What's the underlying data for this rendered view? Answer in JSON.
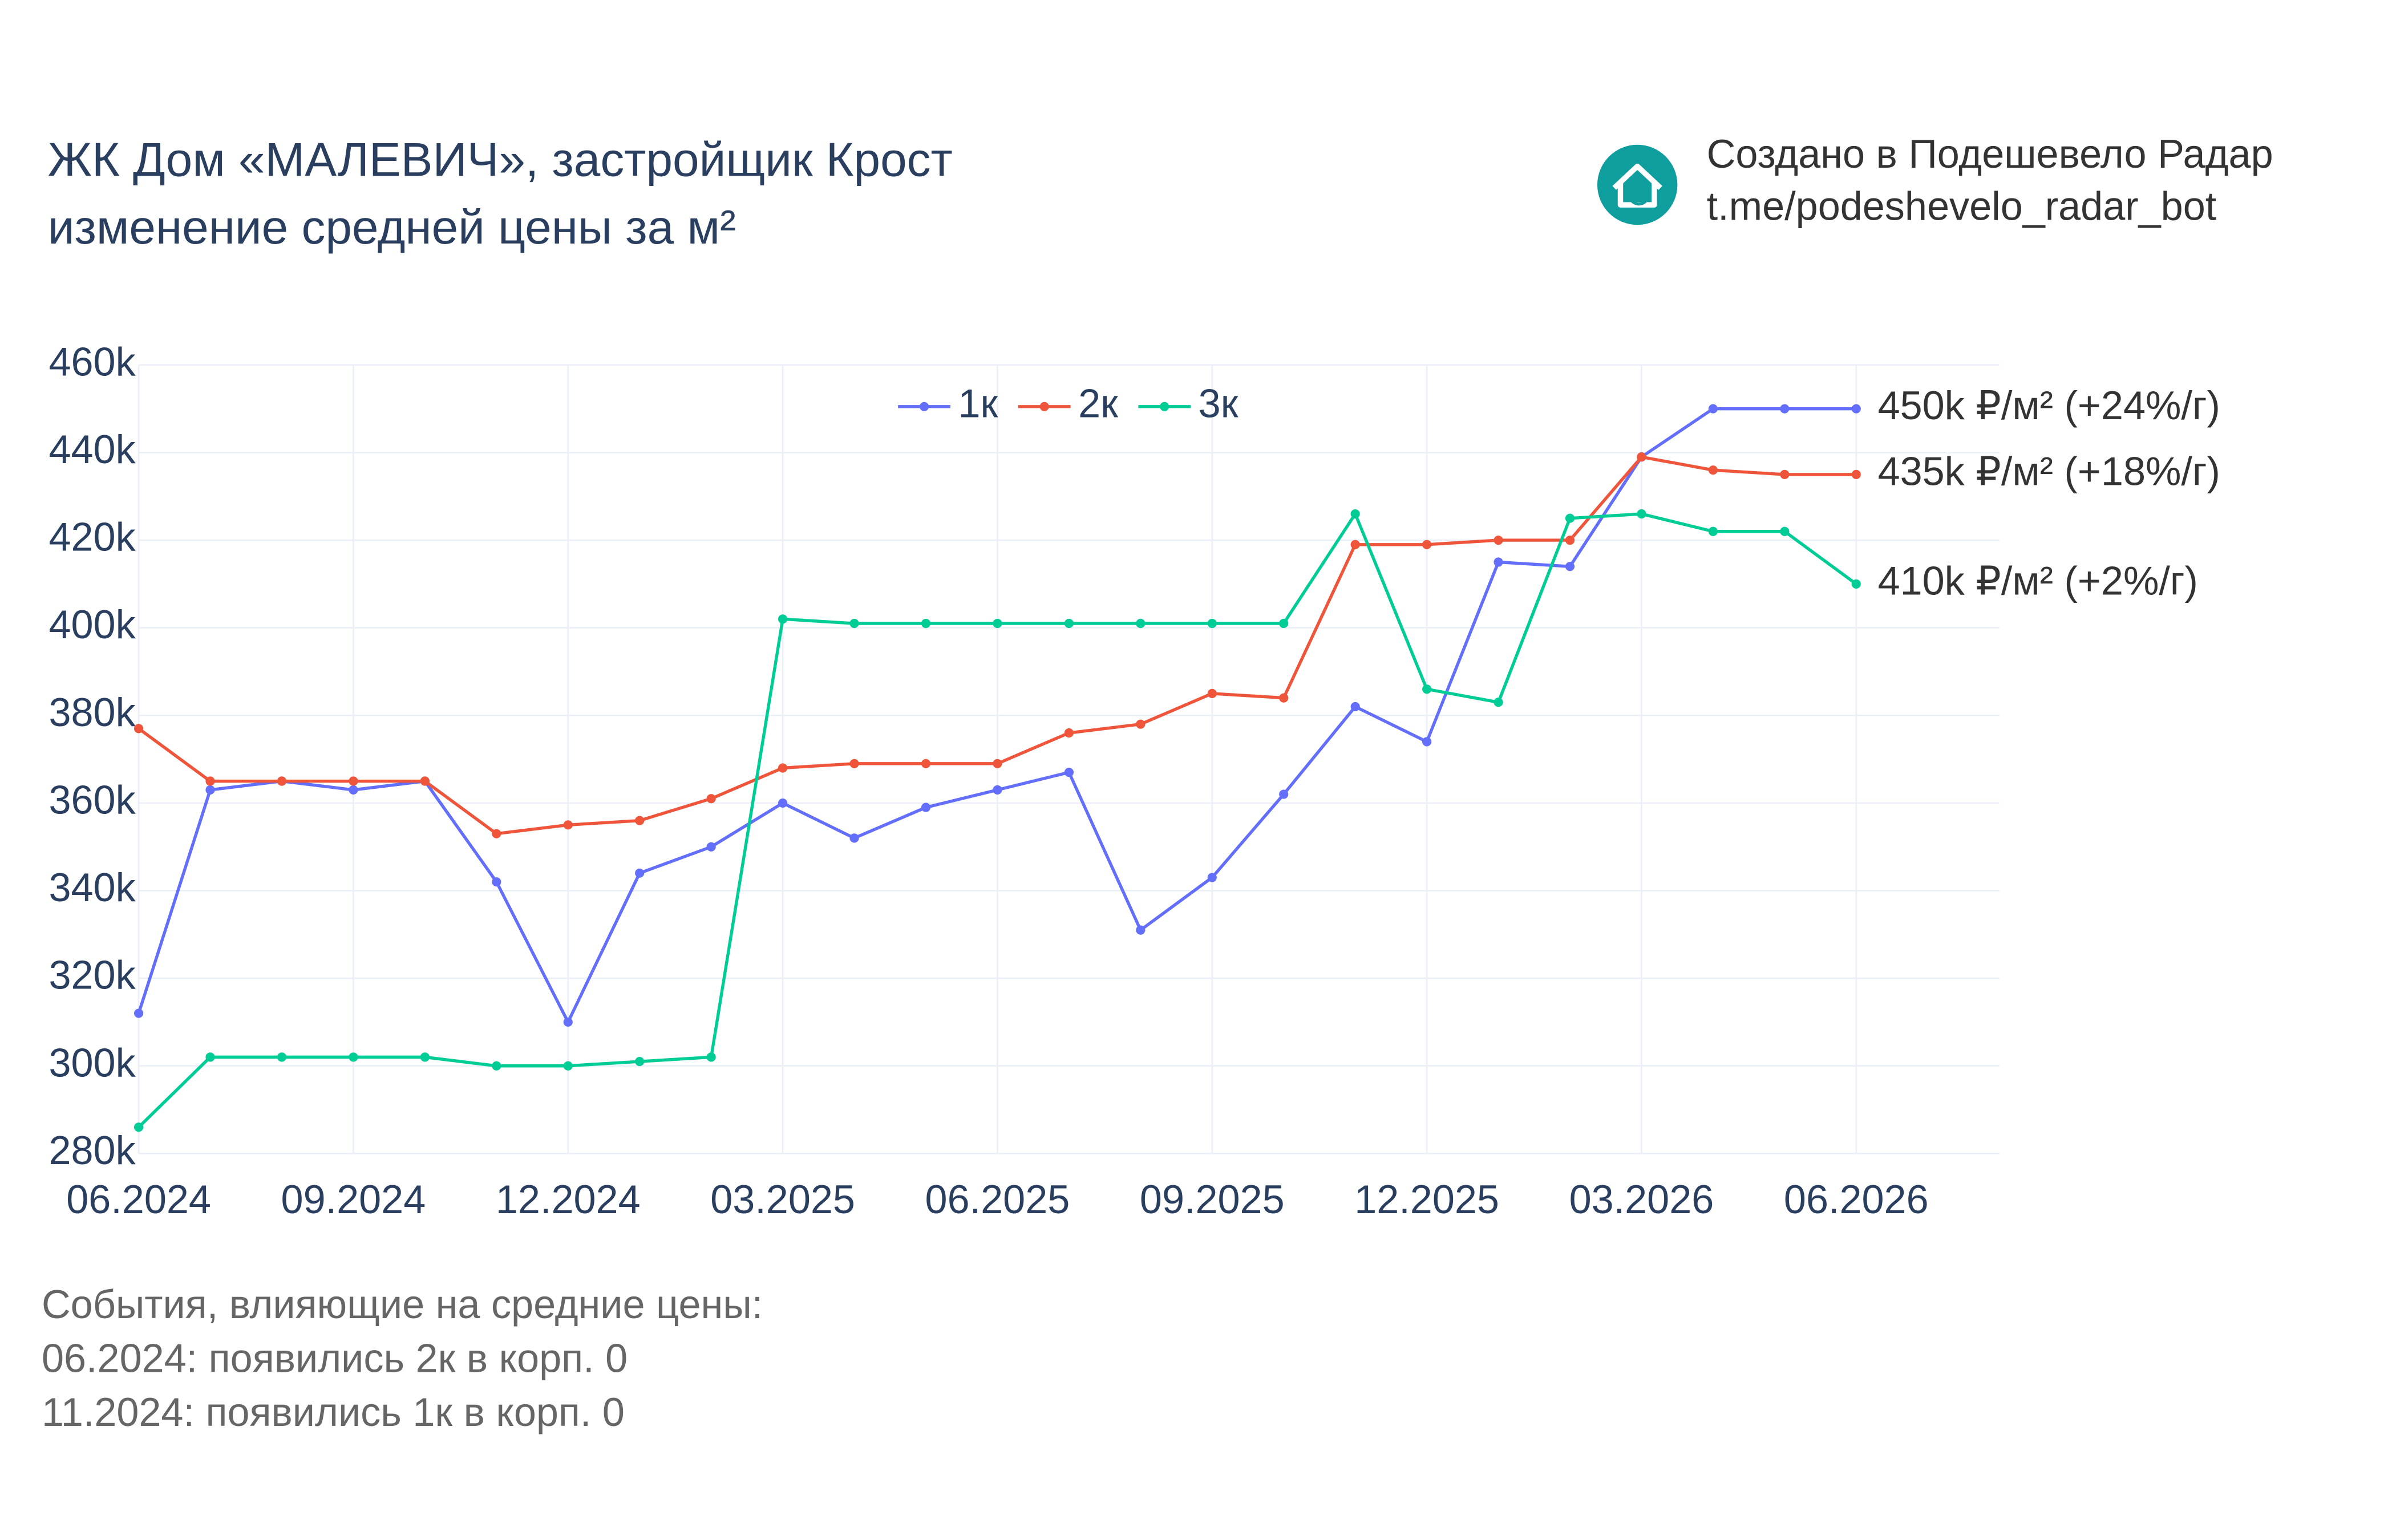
{
  "chart_data": {
    "type": "line",
    "title": "ЖК Дом «МАЛЕВИЧ», застройщик Крост",
    "subtitle": "изменение средней цены за м²",
    "credit": "Создано в Подешевело Радар",
    "credit_link": "t.me/podeshevelo_radar_bot",
    "notes_title": "События, влияющие на средние цены:",
    "notes": [
      "06.2024: появились 2к в корп. 0",
      "11.2024: появились 1к в корп. 0"
    ],
    "x": [
      "2024-06",
      "2024-07",
      "2024-08",
      "2024-09",
      "2024-10",
      "2024-11",
      "2024-12",
      "2025-01",
      "2025-02",
      "2025-03",
      "2025-04",
      "2025-05",
      "2025-06",
      "2025-07",
      "2025-08",
      "2025-09",
      "2025-10",
      "2025-11",
      "2025-12",
      "2026-01",
      "2026-02",
      "2026-03",
      "2026-04",
      "2026-05",
      "2026-06"
    ],
    "xlim": [
      "2024-06",
      "2026-08"
    ],
    "xticks": [
      {
        "value": "2024-06",
        "label": "06.2024"
      },
      {
        "value": "2024-09",
        "label": "09.2024"
      },
      {
        "value": "2024-12",
        "label": "12.2024"
      },
      {
        "value": "2025-03",
        "label": "03.2025"
      },
      {
        "value": "2025-06",
        "label": "06.2025"
      },
      {
        "value": "2025-09",
        "label": "09.2025"
      },
      {
        "value": "2025-12",
        "label": "12.2025"
      },
      {
        "value": "2026-03",
        "label": "03.2026"
      },
      {
        "value": "2026-06",
        "label": "06.2026"
      }
    ],
    "ylim": [
      276000,
      462000
    ],
    "yticks": [
      {
        "value": 280000,
        "label": "280k"
      },
      {
        "value": 300000,
        "label": "300k"
      },
      {
        "value": 320000,
        "label": "320k"
      },
      {
        "value": 340000,
        "label": "340k"
      },
      {
        "value": 360000,
        "label": "360k"
      },
      {
        "value": 380000,
        "label": "380k"
      },
      {
        "value": 400000,
        "label": "400k"
      },
      {
        "value": 420000,
        "label": "420k"
      },
      {
        "value": 440000,
        "label": "440k"
      },
      {
        "value": 460000,
        "label": "460k"
      }
    ],
    "grid": true,
    "legend": "top",
    "series": [
      {
        "name": "1к",
        "color": "#636efa",
        "label": "450k ₽/м² (+24%/г)",
        "values": [
          312000,
          363000,
          365000,
          363000,
          365000,
          342000,
          310000,
          344000,
          350000,
          360000,
          352000,
          359000,
          363000,
          367000,
          331000,
          343000,
          362000,
          382000,
          374000,
          415000,
          414000,
          439000,
          450000,
          450000,
          450000
        ]
      },
      {
        "name": "2к",
        "color": "#ef553b",
        "label": "435k ₽/м² (+18%/г)",
        "values": [
          377000,
          365000,
          365000,
          365000,
          365000,
          353000,
          355000,
          356000,
          361000,
          368000,
          369000,
          369000,
          369000,
          376000,
          378000,
          385000,
          384000,
          419000,
          419000,
          420000,
          420000,
          439000,
          436000,
          435000,
          435000
        ]
      },
      {
        "name": "3к",
        "color": "#00cc96",
        "label": "410k ₽/м² (+2%/г)",
        "values": [
          286000,
          302000,
          302000,
          302000,
          302000,
          300000,
          300000,
          301000,
          302000,
          402000,
          401000,
          401000,
          401000,
          401000,
          401000,
          401000,
          401000,
          426000,
          386000,
          383000,
          425000,
          426000,
          422000,
          422000,
          410000
        ]
      }
    ]
  }
}
